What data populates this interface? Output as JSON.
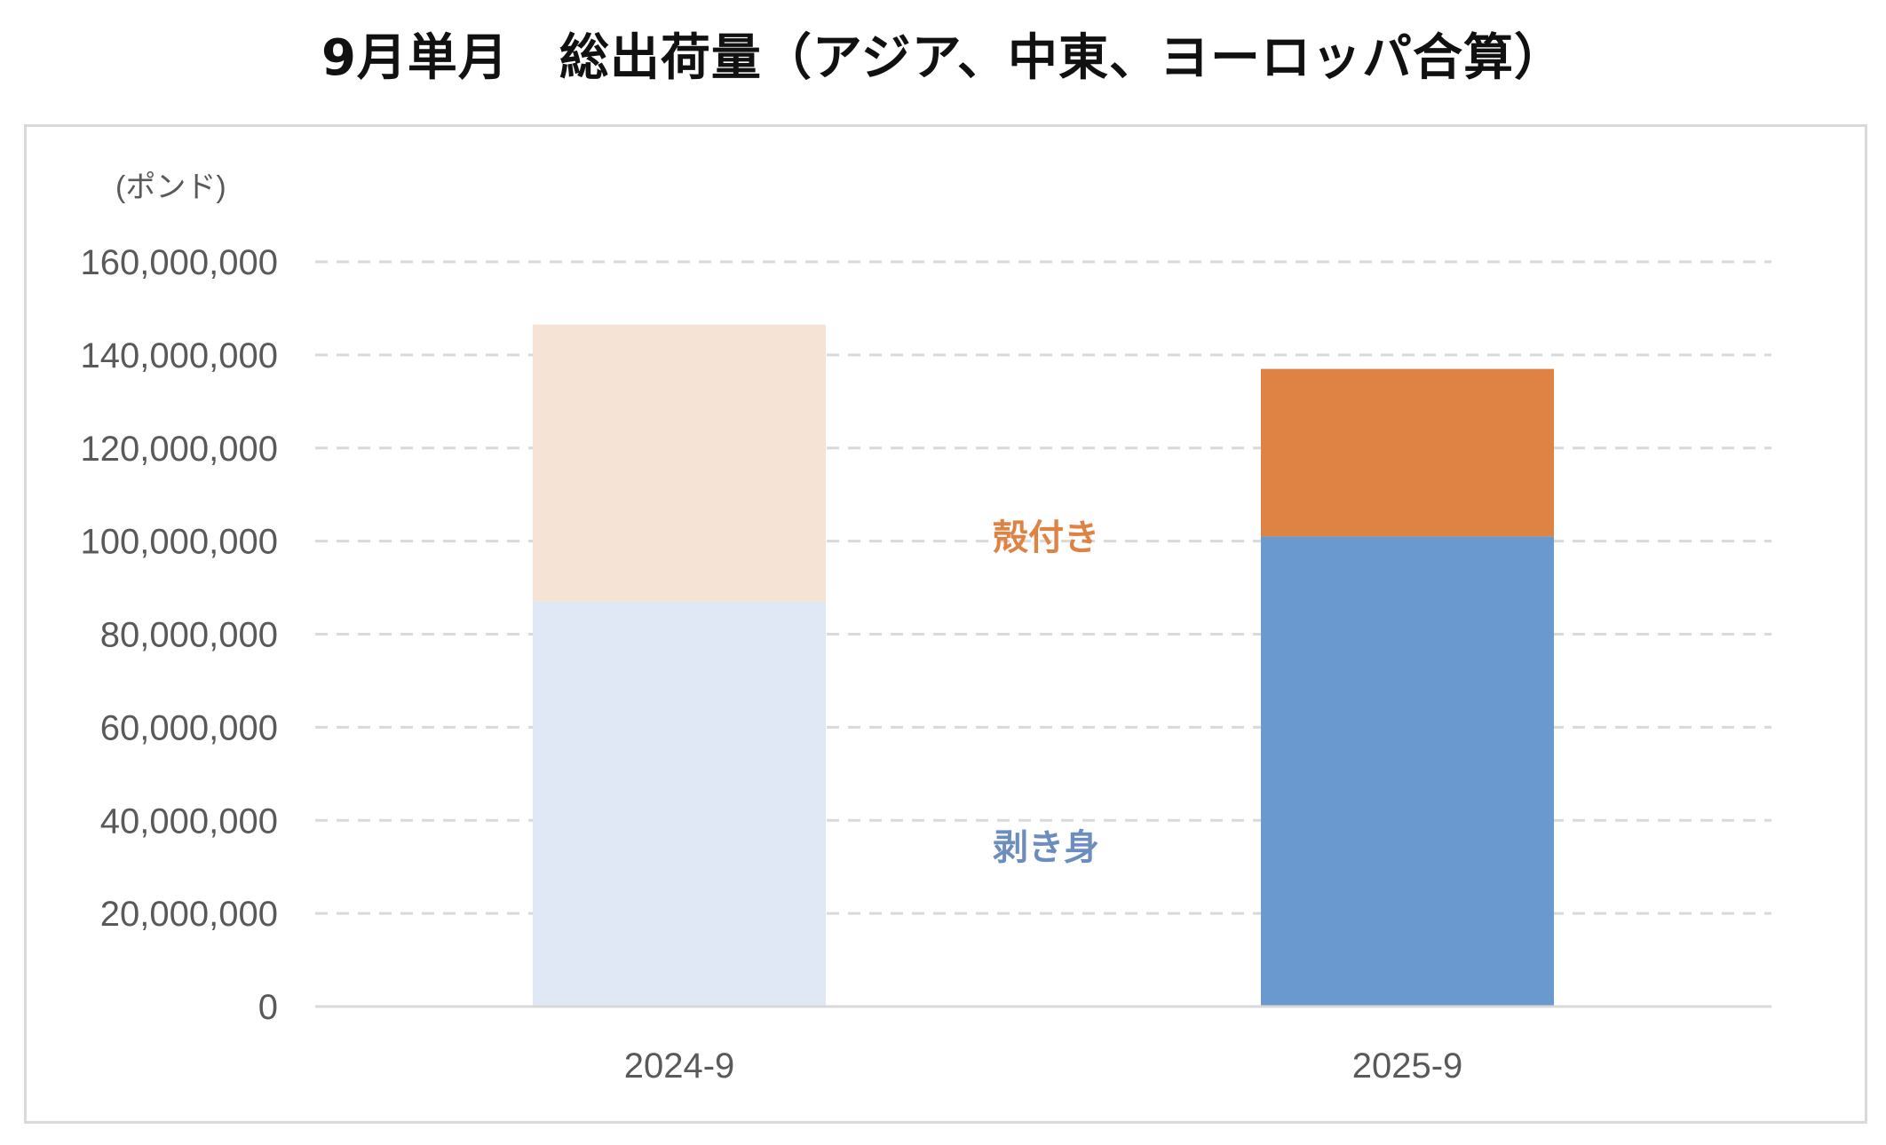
{
  "chart_data": {
    "type": "bar",
    "stacked": true,
    "title": "9月単月　総出荷量（アジア、中東、ヨーロッパ合算）",
    "unit_label": "(ポンド)",
    "categories": [
      "2024-9",
      "2025-9"
    ],
    "series": [
      {
        "name": "剥き身",
        "values": [
          87000000,
          101000000
        ],
        "colors": [
          "#dfe8f4",
          "#6a99cf"
        ],
        "label_color": "#6c8ebf"
      },
      {
        "name": "殻付き",
        "values": [
          59500000,
          36000000
        ],
        "colors": [
          "#f5e4d6",
          "#df8345"
        ],
        "label_color": "#df8345"
      }
    ],
    "ylim": [
      0,
      160000000
    ],
    "yticks": [
      "0",
      "20,000,000",
      "40,000,000",
      "60,000,000",
      "80,000,000",
      "100,000,000",
      "120,000,000",
      "140,000,000",
      "160,000,000"
    ],
    "ytick_values": [
      0,
      20000000,
      40000000,
      60000000,
      80000000,
      100000000,
      120000000,
      140000000,
      160000000
    ],
    "grid": true,
    "grid_style": "dashed",
    "legend": "inline labels between bars",
    "colors": {
      "gridline": "#d9d9d9",
      "axis": "#d9d9d9",
      "tick_text": "#595959",
      "frame": "#d9d9d9"
    }
  }
}
